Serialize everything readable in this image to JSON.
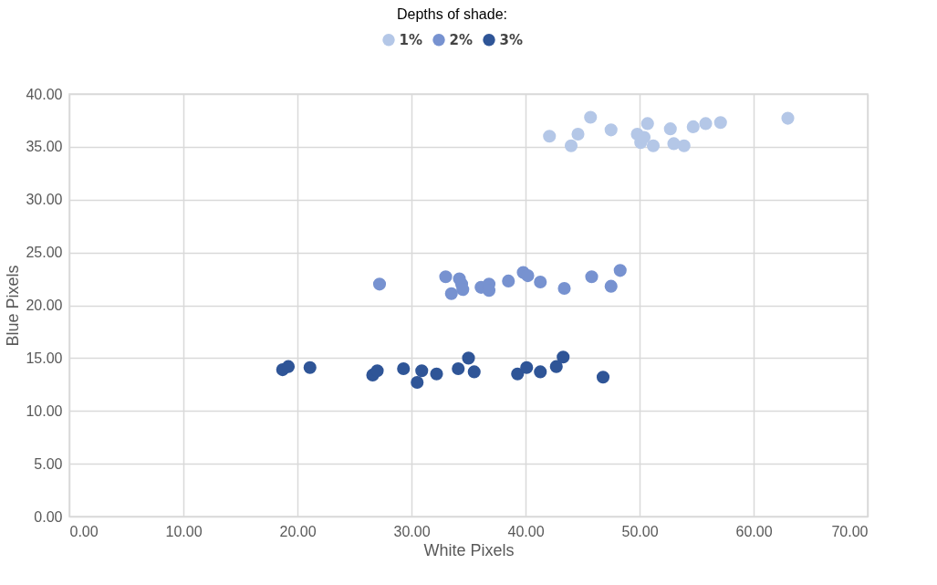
{
  "chart_data": {
    "type": "scatter",
    "legend_title": "Depths of shade:",
    "xlabel": "White Pixels",
    "ylabel": "Blue Pixels",
    "legend": "top",
    "grid": true,
    "marker": "circle",
    "xlim": [
      0,
      70
    ],
    "ylim": [
      0,
      40
    ],
    "xticks": [
      {
        "value": 0,
        "label": "0.00"
      },
      {
        "value": 10,
        "label": "10.00"
      },
      {
        "value": 20,
        "label": "20.00"
      },
      {
        "value": 30,
        "label": "30.00"
      },
      {
        "value": 40,
        "label": "40.00"
      },
      {
        "value": 50,
        "label": "50.00"
      },
      {
        "value": 60,
        "label": "60.00"
      },
      {
        "value": 70,
        "label": "70.00"
      }
    ],
    "yticks": [
      {
        "value": 0,
        "label": "0.00"
      },
      {
        "value": 5,
        "label": "5.00"
      },
      {
        "value": 10,
        "label": "10.00"
      },
      {
        "value": 15,
        "label": "15.00"
      },
      {
        "value": 20,
        "label": "20.00"
      },
      {
        "value": 25,
        "label": "25.00"
      },
      {
        "value": 30,
        "label": "30.00"
      },
      {
        "value": 35,
        "label": "35.00"
      },
      {
        "value": 40,
        "label": "40.00"
      }
    ],
    "series": [
      {
        "name": "1%",
        "color": "#b4c7e7",
        "x": [
          42.1,
          44.0,
          44.6,
          45.7,
          47.5,
          49.8,
          50.1,
          50.4,
          50.7,
          51.2,
          52.7,
          53.0,
          53.9,
          54.7,
          55.8,
          57.1,
          63.0
        ],
        "values": [
          36.0,
          35.1,
          36.2,
          37.8,
          36.6,
          36.2,
          35.4,
          35.9,
          37.2,
          35.1,
          36.7,
          35.3,
          35.1,
          36.9,
          37.2,
          37.3,
          37.7
        ]
      },
      {
        "name": "2%",
        "color": "#7792d0",
        "x": [
          27.2,
          33.0,
          33.5,
          34.2,
          34.4,
          34.5,
          36.1,
          36.8,
          36.8,
          38.5,
          39.8,
          40.2,
          41.3,
          43.4,
          45.8,
          47.5,
          48.3
        ],
        "values": [
          22.0,
          22.7,
          21.1,
          22.5,
          22.0,
          21.5,
          21.7,
          22.0,
          21.4,
          22.3,
          23.1,
          22.8,
          22.2,
          21.6,
          22.7,
          21.8,
          23.3
        ]
      },
      {
        "name": "3%",
        "color": "#2f5597",
        "x": [
          18.7,
          19.2,
          21.1,
          26.6,
          27.0,
          29.3,
          30.5,
          30.9,
          32.2,
          34.1,
          35.0,
          35.5,
          39.3,
          40.1,
          41.3,
          42.7,
          43.3,
          46.8
        ],
        "values": [
          13.9,
          14.2,
          14.1,
          13.4,
          13.8,
          14.0,
          12.7,
          13.8,
          13.5,
          14.0,
          15.0,
          13.7,
          13.5,
          14.1,
          13.7,
          14.2,
          15.1,
          13.2
        ]
      }
    ]
  }
}
